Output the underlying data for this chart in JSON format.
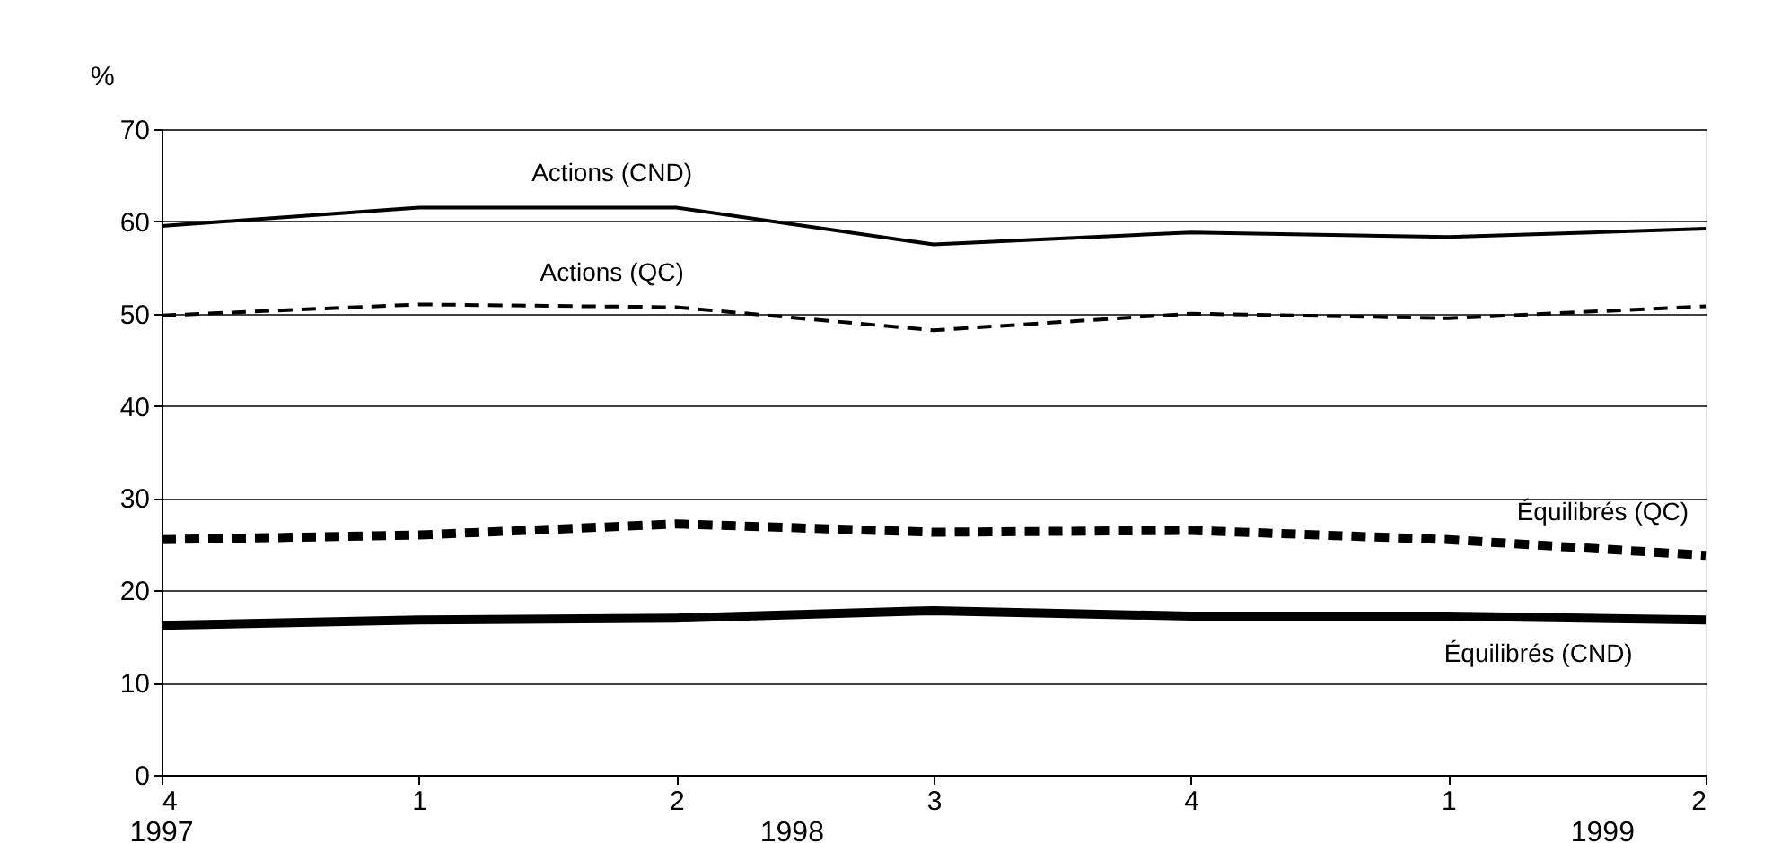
{
  "chart_data": {
    "type": "line",
    "ylabel": "%",
    "categories": [
      "4",
      "1",
      "2",
      "3",
      "4",
      "1",
      "2"
    ],
    "series": [
      {
        "name": "Actions (CND)",
        "color": "#000000",
        "line_style": "solid",
        "values": [
          59.5,
          61.5,
          61.5,
          57.5,
          58.8,
          58.3,
          59.2
        ]
      },
      {
        "name": "Actions (QC)",
        "color": "#000000",
        "line_style": "dashed",
        "values": [
          49.8,
          51.0,
          50.7,
          48.2,
          50.0,
          49.5,
          50.8
        ]
      },
      {
        "name": "Équilibrés (QC)",
        "color": "#000000",
        "line_style": "dashed",
        "values": [
          25.5,
          26.0,
          27.2,
          26.3,
          26.5,
          25.5,
          23.8
        ]
      },
      {
        "name": "Équilibrés (CND)",
        "color": "#000000",
        "line_style": "solid",
        "values": [
          16.2,
          16.8,
          17.0,
          17.8,
          17.2,
          17.2,
          16.8
        ]
      }
    ],
    "ylim": [
      0,
      70
    ],
    "yticks": [
      0,
      10,
      20,
      30,
      40,
      50,
      60,
      70
    ],
    "grid": "y",
    "marker": "none",
    "annotations": [
      "1997",
      "1998",
      "1999"
    ]
  }
}
